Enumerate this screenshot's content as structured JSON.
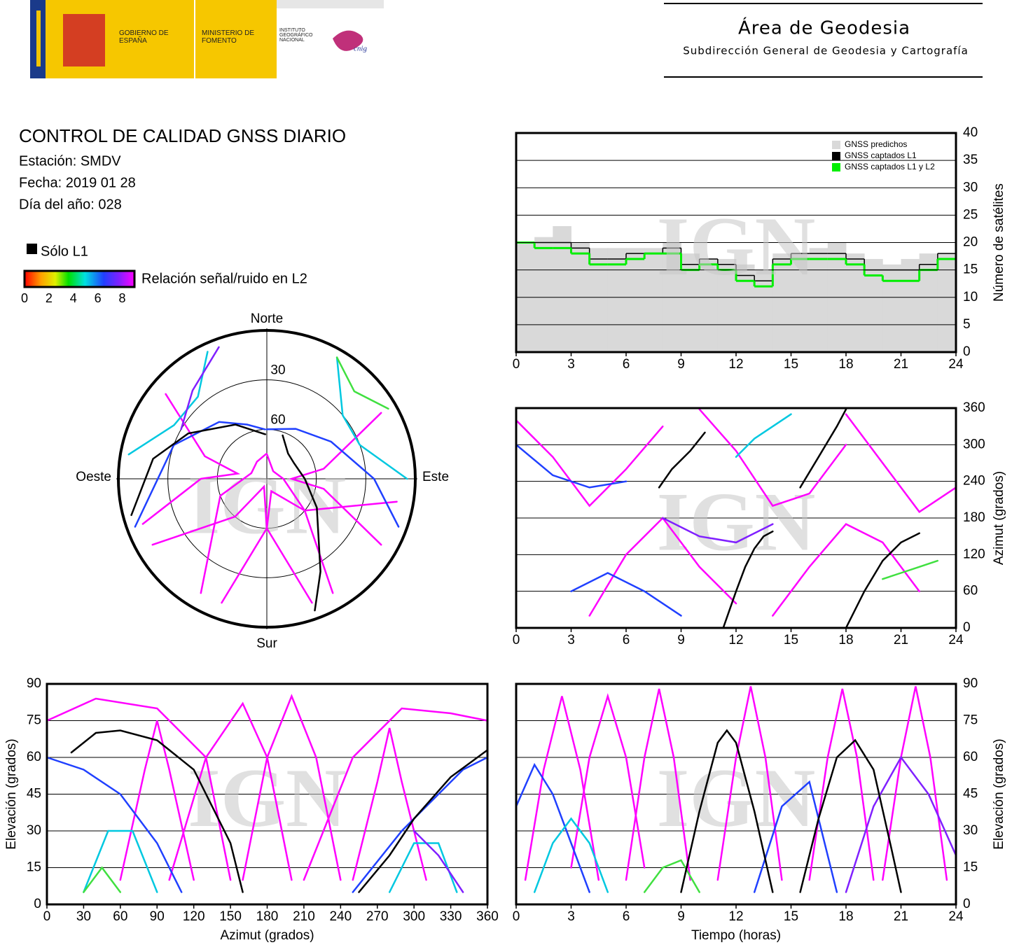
{
  "header": {
    "logo_government": "GOBIERNO DE ESPAÑA",
    "logo_ministry": "MINISTERIO DE FOMENTO",
    "logo_institute": "INSTITUTO GEOGRÁFICO NACIONAL",
    "logo_cnig": "cnig",
    "title": "Área de Geodesia",
    "subtitle": "Subdirección General de Geodesia y Cartografía"
  },
  "info": {
    "title": "CONTROL DE CALIDAD GNSS DIARIO",
    "station": "Estación: SMDV",
    "date": "Fecha: 2019 01 28",
    "day_of_year": "Día del año: 028"
  },
  "legend": {
    "l1_only": "Sólo L1",
    "l1_only_color": "#000000",
    "snr_label": "Relación señal/ruido en L2",
    "snr_range": [
      0,
      9
    ],
    "snr_ticks": [
      0,
      2,
      4,
      6,
      8
    ]
  },
  "watermark": "IGN",
  "chart_data": [
    {
      "type": "line",
      "drawstyle": "steps",
      "ylabel": "Número de satélites",
      "yaxis_side": "right",
      "xlim": [
        0,
        24
      ],
      "xticks": [
        0,
        3,
        6,
        9,
        12,
        15,
        18,
        21,
        24
      ],
      "ylim": [
        0,
        40
      ],
      "yticks": [
        0,
        5,
        10,
        15,
        20,
        25,
        30,
        35,
        40
      ],
      "grid": true,
      "legend": "upper right",
      "x": [
        0,
        1,
        2,
        3,
        4,
        5,
        6,
        7,
        8,
        9,
        10,
        11,
        12,
        13,
        14,
        15,
        16,
        17,
        18,
        19,
        20,
        21,
        22,
        23
      ],
      "series": [
        {
          "name": "GNSS predichos",
          "color": "#d9d9d9",
          "fill": true,
          "values": [
            20,
            21,
            23,
            20,
            19,
            19,
            19,
            19,
            20,
            18,
            17,
            17,
            16,
            15,
            18,
            18,
            19,
            20,
            18,
            17,
            16,
            17,
            18,
            18
          ]
        },
        {
          "name": "GNSS captados L1",
          "color": "#000000",
          "values": [
            20,
            20,
            20,
            19,
            17,
            17,
            18,
            18,
            19,
            16,
            17,
            16,
            14,
            13,
            17,
            18,
            18,
            18,
            17,
            15,
            15,
            15,
            16,
            18
          ]
        },
        {
          "name": "GNSS captados L1 y L2",
          "color": "#00ee00",
          "values": [
            20,
            19,
            19,
            18,
            16,
            16,
            17,
            18,
            18,
            15,
            16,
            15,
            13,
            12,
            16,
            17,
            17,
            17,
            16,
            14,
            13,
            13,
            15,
            17
          ]
        }
      ]
    },
    {
      "type": "line",
      "ylabel": "Azimut (grados)",
      "yaxis_side": "right",
      "xlim": [
        0,
        24
      ],
      "xticks": [
        0,
        3,
        6,
        9,
        12,
        15,
        18,
        21,
        24
      ],
      "ylim": [
        0,
        360
      ],
      "yticks": [
        0,
        60,
        120,
        180,
        240,
        300,
        360
      ],
      "grid": true,
      "series": [
        {
          "color": "#ff00ff",
          "x": [
            0,
            2,
            4,
            6,
            8
          ],
          "values": [
            340,
            280,
            200,
            260,
            330
          ]
        },
        {
          "color": "#ff00ff",
          "x": [
            4,
            6,
            8,
            10,
            12
          ],
          "values": [
            20,
            120,
            180,
            100,
            40
          ]
        },
        {
          "color": "#ff00ff",
          "x": [
            10,
            12,
            14,
            16,
            18
          ],
          "values": [
            358,
            290,
            200,
            220,
            300
          ]
        },
        {
          "color": "#ff00ff",
          "x": [
            14,
            16,
            18,
            20,
            22
          ],
          "values": [
            20,
            100,
            170,
            140,
            60
          ]
        },
        {
          "color": "#ff00ff",
          "x": [
            18,
            20,
            22,
            24
          ],
          "values": [
            350,
            270,
            190,
            230
          ]
        },
        {
          "color": "#2040ff",
          "x": [
            0,
            2,
            4,
            6
          ],
          "values": [
            300,
            250,
            230,
            240
          ]
        },
        {
          "color": "#2040ff",
          "x": [
            3,
            5,
            7,
            9
          ],
          "values": [
            60,
            90,
            60,
            20
          ]
        },
        {
          "color": "#00c8e0",
          "x": [
            12,
            13,
            14,
            15
          ],
          "values": [
            280,
            310,
            330,
            350
          ]
        },
        {
          "color": "#40e040",
          "x": [
            20,
            21,
            22,
            23
          ],
          "values": [
            80,
            90,
            100,
            110
          ]
        },
        {
          "color": "#8020ff",
          "x": [
            8,
            10,
            12,
            14
          ],
          "values": [
            180,
            150,
            140,
            170
          ]
        },
        {
          "color": "#000000",
          "x": [
            11.3,
            12,
            12.5,
            13,
            13.5,
            14
          ],
          "values": [
            0,
            60,
            100,
            130,
            150,
            158
          ]
        },
        {
          "color": "#000000",
          "x": [
            7.8,
            8.5,
            9.5,
            10.3
          ],
          "values": [
            230,
            260,
            290,
            320
          ]
        },
        {
          "color": "#000000",
          "x": [
            18,
            19,
            20,
            21,
            22
          ],
          "values": [
            0,
            60,
            110,
            140,
            155
          ]
        },
        {
          "color": "#000000",
          "x": [
            15.5,
            16.5,
            17.5,
            18
          ],
          "values": [
            230,
            280,
            330,
            358
          ]
        }
      ]
    },
    {
      "type": "polar",
      "directions": [
        "Norte",
        "Este",
        "Sur",
        "Oeste"
      ],
      "rlim": [
        90,
        0
      ],
      "rticks": [
        30,
        60
      ],
      "series": [
        {
          "color": "#ff00ff",
          "x": [
            0,
            40,
            90,
            130,
            150
          ],
          "values": [
            75,
            84,
            80,
            60,
            10
          ]
        },
        {
          "color": "#ff00ff",
          "x": [
            100,
            130,
            160,
            180,
            200
          ],
          "values": [
            10,
            60,
            82,
            60,
            10
          ]
        },
        {
          "color": "#ff00ff",
          "x": [
            160,
            180,
            200,
            220,
            240
          ],
          "values": [
            10,
            60,
            85,
            60,
            10
          ]
        },
        {
          "color": "#ff00ff",
          "x": [
            210,
            250,
            290,
            330,
            358
          ],
          "values": [
            10,
            60,
            80,
            78,
            75
          ]
        },
        {
          "color": "#ff00ff",
          "x": [
            60,
            80,
            90,
            100,
            120
          ],
          "values": [
            10,
            55,
            75,
            55,
            10
          ]
        },
        {
          "color": "#ff00ff",
          "x": [
            250,
            270,
            280,
            290,
            310
          ],
          "values": [
            10,
            50,
            72,
            50,
            10
          ]
        },
        {
          "color": "#2040ff",
          "x": [
            0,
            30,
            60,
            90,
            110
          ],
          "values": [
            60,
            55,
            45,
            25,
            5
          ]
        },
        {
          "color": "#2040ff",
          "x": [
            250,
            290,
            320,
            340,
            358
          ],
          "values": [
            5,
            30,
            45,
            55,
            60
          ]
        },
        {
          "color": "#00c8e0",
          "x": [
            30,
            50,
            70,
            90
          ],
          "values": [
            5,
            30,
            30,
            5
          ]
        },
        {
          "color": "#00c8e0",
          "x": [
            280,
            300,
            320,
            335
          ],
          "values": [
            5,
            25,
            25,
            5
          ]
        },
        {
          "color": "#40e040",
          "x": [
            30,
            45,
            60
          ],
          "values": [
            5,
            15,
            5
          ]
        },
        {
          "color": "#8020ff",
          "x": [
            300,
            320,
            340
          ],
          "values": [
            30,
            20,
            5
          ]
        },
        {
          "color": "#000000",
          "x": [
            20,
            40,
            60,
            90,
            120,
            150,
            160
          ],
          "values": [
            62,
            70,
            71,
            67,
            55,
            25,
            5
          ]
        },
        {
          "color": "#000000",
          "x": [
            255,
            280,
            300,
            330,
            358
          ],
          "values": [
            5,
            20,
            35,
            52,
            63
          ]
        }
      ]
    },
    {
      "type": "line",
      "xlabel": "Azimut (grados)",
      "ylabel": "Elevación (grados)",
      "yaxis_side": "left",
      "xlim": [
        0,
        360
      ],
      "xticks": [
        0,
        30,
        60,
        90,
        120,
        150,
        180,
        210,
        240,
        270,
        300,
        330,
        360
      ],
      "ylim": [
        0,
        90
      ],
      "yticks": [
        0,
        15,
        30,
        45,
        60,
        75,
        90
      ],
      "grid": true,
      "series": [
        {
          "color": "#ff00ff",
          "x": [
            0,
            40,
            90,
            130,
            150
          ],
          "values": [
            75,
            84,
            80,
            60,
            10
          ]
        },
        {
          "color": "#ff00ff",
          "x": [
            100,
            130,
            160,
            180,
            200
          ],
          "values": [
            10,
            60,
            82,
            60,
            10
          ]
        },
        {
          "color": "#ff00ff",
          "x": [
            160,
            180,
            200,
            220,
            240
          ],
          "values": [
            10,
            60,
            85,
            60,
            10
          ]
        },
        {
          "color": "#ff00ff",
          "x": [
            210,
            250,
            290,
            330,
            360
          ],
          "values": [
            10,
            60,
            80,
            78,
            75
          ]
        },
        {
          "color": "#ff00ff",
          "x": [
            60,
            80,
            90,
            100,
            120
          ],
          "values": [
            10,
            55,
            75,
            55,
            10
          ]
        },
        {
          "color": "#ff00ff",
          "x": [
            250,
            270,
            280,
            290,
            310
          ],
          "values": [
            10,
            50,
            72,
            50,
            10
          ]
        },
        {
          "color": "#2040ff",
          "x": [
            0,
            30,
            60,
            90,
            110
          ],
          "values": [
            60,
            55,
            45,
            25,
            5
          ]
        },
        {
          "color": "#2040ff",
          "x": [
            250,
            290,
            320,
            340,
            360
          ],
          "values": [
            5,
            30,
            45,
            55,
            60
          ]
        },
        {
          "color": "#00c8e0",
          "x": [
            30,
            50,
            70,
            90
          ],
          "values": [
            5,
            30,
            30,
            5
          ]
        },
        {
          "color": "#00c8e0",
          "x": [
            280,
            300,
            320,
            335
          ],
          "values": [
            5,
            25,
            25,
            5
          ]
        },
        {
          "color": "#40e040",
          "x": [
            30,
            45,
            60
          ],
          "values": [
            5,
            15,
            5
          ]
        },
        {
          "color": "#8020ff",
          "x": [
            300,
            320,
            340
          ],
          "values": [
            30,
            20,
            5
          ]
        },
        {
          "color": "#000000",
          "x": [
            20,
            40,
            60,
            90,
            120,
            150,
            160
          ],
          "values": [
            62,
            70,
            71,
            67,
            55,
            25,
            5
          ]
        },
        {
          "color": "#000000",
          "x": [
            255,
            280,
            300,
            330,
            360
          ],
          "values": [
            5,
            20,
            35,
            52,
            63
          ]
        }
      ]
    },
    {
      "type": "line",
      "xlabel": "Tiempo (horas)",
      "ylabel": "Elevación (grados)",
      "yaxis_side": "right",
      "xlim": [
        0,
        24
      ],
      "xticks": [
        0,
        3,
        6,
        9,
        12,
        15,
        18,
        21,
        24
      ],
      "ylim": [
        0,
        90
      ],
      "yticks": [
        0,
        15,
        30,
        45,
        60,
        75,
        90
      ],
      "grid": true,
      "series": [
        {
          "color": "#ff00ff",
          "x": [
            0.5,
            1.5,
            2.5,
            3.5,
            4.5
          ],
          "values": [
            10,
            55,
            85,
            55,
            10
          ]
        },
        {
          "color": "#ff00ff",
          "x": [
            3,
            4,
            5,
            6,
            7
          ],
          "values": [
            15,
            60,
            85,
            60,
            15
          ]
        },
        {
          "color": "#ff00ff",
          "x": [
            6,
            7,
            7.8,
            8.6,
            9.5
          ],
          "values": [
            10,
            60,
            88,
            60,
            10
          ]
        },
        {
          "color": "#ff00ff",
          "x": [
            11,
            12,
            12.8,
            13.6,
            14.5
          ],
          "values": [
            10,
            60,
            89,
            60,
            10
          ]
        },
        {
          "color": "#ff00ff",
          "x": [
            16,
            17,
            17.8,
            18.6,
            19.5
          ],
          "values": [
            10,
            60,
            88,
            60,
            10
          ]
        },
        {
          "color": "#ff00ff",
          "x": [
            20,
            21,
            21.8,
            22.6,
            23.5
          ],
          "values": [
            10,
            60,
            89,
            60,
            10
          ]
        },
        {
          "color": "#2040ff",
          "x": [
            0,
            1,
            2,
            3,
            4
          ],
          "values": [
            40,
            57,
            45,
            25,
            5
          ]
        },
        {
          "color": "#2040ff",
          "x": [
            13,
            14.5,
            16,
            17.5
          ],
          "values": [
            5,
            40,
            50,
            5
          ]
        },
        {
          "color": "#00c8e0",
          "x": [
            1,
            2,
            3,
            4,
            5
          ],
          "values": [
            5,
            25,
            35,
            25,
            5
          ]
        },
        {
          "color": "#40e040",
          "x": [
            7,
            8,
            9,
            10
          ],
          "values": [
            5,
            15,
            18,
            5
          ]
        },
        {
          "color": "#8020ff",
          "x": [
            18,
            19.5,
            21,
            22.5,
            24
          ],
          "values": [
            5,
            40,
            60,
            45,
            20
          ]
        },
        {
          "color": "#000000",
          "x": [
            9,
            10,
            11,
            11.5,
            12,
            13,
            14
          ],
          "values": [
            5,
            38,
            66,
            71,
            66,
            38,
            5
          ]
        },
        {
          "color": "#000000",
          "x": [
            15.5,
            16.5,
            17.5,
            18.5,
            19.5,
            20.5,
            21
          ],
          "values": [
            5,
            35,
            60,
            67,
            55,
            22,
            5
          ]
        }
      ]
    }
  ]
}
